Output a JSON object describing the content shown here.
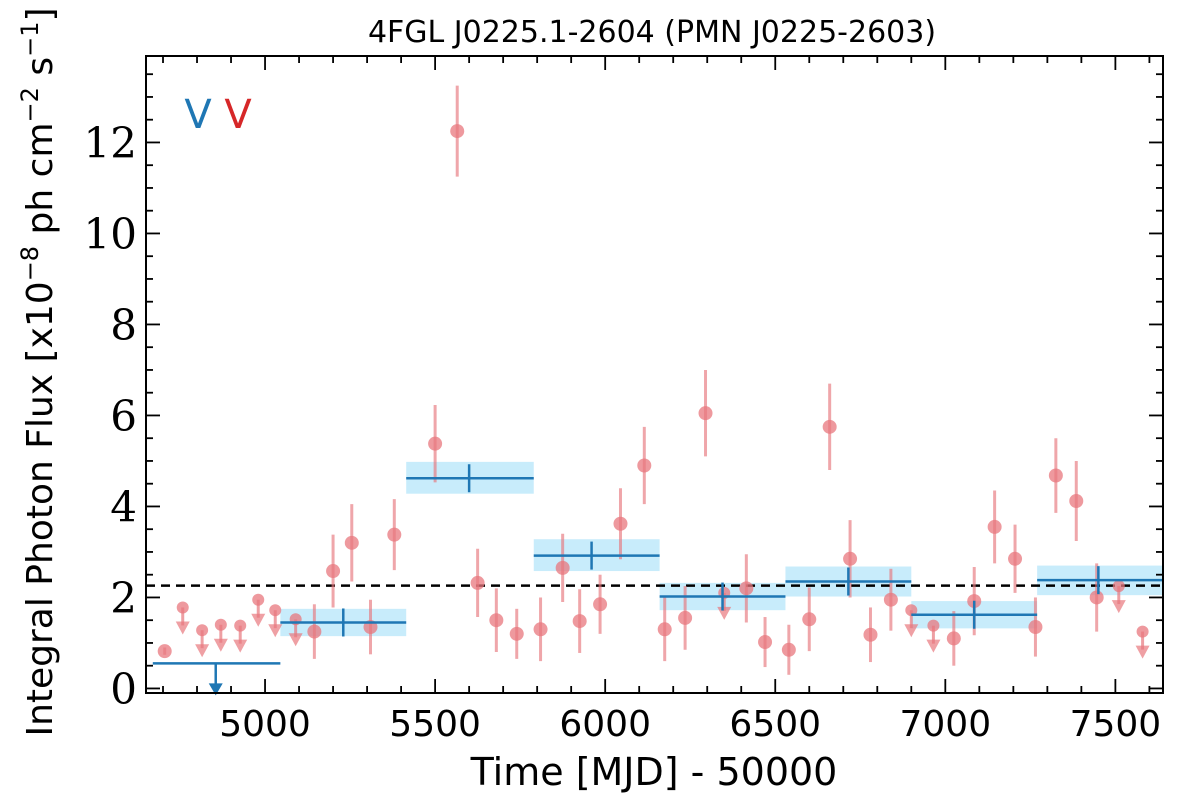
{
  "chart_data": {
    "type": "scatter",
    "title": "4FGL J0225.1-2604 (PMN J0225-2603)",
    "xlabel": "Time [MJD] - 50000",
    "ylabel_main": "Integral Photon Flux [x10",
    "ylabel_exp1": "−8",
    "ylabel_mid": " ph cm",
    "ylabel_exp2": "−2",
    "ylabel_mid2": " s",
    "ylabel_exp3": "−1",
    "ylabel_end": "]",
    "xlim": [
      4650,
      7640
    ],
    "ylim": [
      -0.1,
      13.9
    ],
    "xticks": [
      5000,
      5500,
      6000,
      6500,
      7000,
      7500
    ],
    "yticks": [
      0,
      2,
      4,
      6,
      8,
      10,
      12
    ],
    "ytick_labels": [
      "0",
      "2",
      "4",
      "6",
      "8",
      "10",
      "12"
    ],
    "mean_flux": 2.26,
    "legend_markers": [
      "V",
      "V"
    ],
    "colors": {
      "blue": "#1f77b4",
      "red": "#d62728",
      "red_points": "#e8777d",
      "band": "#c8ecfb",
      "dashed": "#000000"
    },
    "series": [
      {
        "points": [
          {
            "x": 4705,
            "y": 0.82,
            "err": 0.08
          },
          {
            "x": 4758,
            "y": 1.78,
            "err": 0.12,
            "ul": true
          },
          {
            "x": 4815,
            "y": 1.28,
            "err": 0.12,
            "ul": true
          },
          {
            "x": 4870,
            "y": 1.4,
            "err": 0.12,
            "ul": true
          },
          {
            "x": 4927,
            "y": 1.38,
            "err": 0.12,
            "ul": true
          },
          {
            "x": 4980,
            "y": 1.95,
            "err": 0.12,
            "ul": true
          },
          {
            "x": 5030,
            "y": 1.72,
            "err": 0.12,
            "ul": true
          },
          {
            "x": 5090,
            "y": 1.52,
            "err": 0.12,
            "ul": true
          },
          {
            "x": 5145,
            "y": 1.25,
            "err": 0.6
          },
          {
            "x": 5200,
            "y": 2.58,
            "err": 0.8
          },
          {
            "x": 5255,
            "y": 3.2,
            "err": 0.85
          },
          {
            "x": 5310,
            "y": 1.35,
            "err": 0.6
          },
          {
            "x": 5380,
            "y": 3.38,
            "err": 0.78
          },
          {
            "x": 5500,
            "y": 5.38,
            "err": 0.85
          },
          {
            "x": 5565,
            "y": 12.25,
            "err": 1.0
          },
          {
            "x": 5625,
            "y": 2.32,
            "err": 0.75
          },
          {
            "x": 5680,
            "y": 1.5,
            "err": 0.7
          },
          {
            "x": 5740,
            "y": 1.2,
            "err": 0.55
          },
          {
            "x": 5810,
            "y": 1.3,
            "err": 0.7
          },
          {
            "x": 5875,
            "y": 2.65,
            "err": 0.75
          },
          {
            "x": 5925,
            "y": 1.48,
            "err": 0.7
          },
          {
            "x": 5985,
            "y": 1.85,
            "err": 0.65
          },
          {
            "x": 6045,
            "y": 3.62,
            "err": 0.78
          },
          {
            "x": 6115,
            "y": 4.9,
            "err": 0.85
          },
          {
            "x": 6175,
            "y": 1.3,
            "err": 0.7
          },
          {
            "x": 6235,
            "y": 1.55,
            "err": 0.7
          },
          {
            "x": 6295,
            "y": 6.05,
            "err": 0.95
          },
          {
            "x": 6350,
            "y": 2.1,
            "err": 0.12,
            "ul": true
          },
          {
            "x": 6415,
            "y": 2.2,
            "err": 0.75
          },
          {
            "x": 6470,
            "y": 1.02,
            "err": 0.55
          },
          {
            "x": 6540,
            "y": 0.85,
            "err": 0.55
          },
          {
            "x": 6600,
            "y": 1.52,
            "err": 0.7
          },
          {
            "x": 6660,
            "y": 5.75,
            "err": 0.95
          },
          {
            "x": 6720,
            "y": 2.85,
            "err": 0.85
          },
          {
            "x": 6780,
            "y": 1.18,
            "err": 0.6
          },
          {
            "x": 6840,
            "y": 1.95,
            "err": 0.68
          },
          {
            "x": 6900,
            "y": 1.72,
            "err": 0.12,
            "ul": true
          },
          {
            "x": 6965,
            "y": 1.38,
            "err": 0.12,
            "ul": true
          },
          {
            "x": 7025,
            "y": 1.1,
            "err": 0.6
          },
          {
            "x": 7085,
            "y": 1.92,
            "err": 0.75
          },
          {
            "x": 7145,
            "y": 3.55,
            "err": 0.8
          },
          {
            "x": 7205,
            "y": 2.85,
            "err": 0.75
          },
          {
            "x": 7265,
            "y": 1.35,
            "err": 0.65
          },
          {
            "x": 7325,
            "y": 4.68,
            "err": 0.82
          },
          {
            "x": 7385,
            "y": 4.12,
            "err": 0.88
          },
          {
            "x": 7445,
            "y": 2.0,
            "err": 0.75
          },
          {
            "x": 7510,
            "y": 2.25,
            "err": 0.12,
            "ul": true
          },
          {
            "x": 7580,
            "y": 1.25,
            "err": 0.12,
            "ul": true
          }
        ]
      },
      {
        "bins": [
          {
            "x0": 4670,
            "x1": 5045,
            "y": 0.55,
            "ylo": 0.55,
            "yhi": 0.55,
            "ul": true,
            "xc": 4855
          },
          {
            "x0": 5045,
            "x1": 5415,
            "y": 1.45,
            "ylo": 1.15,
            "yhi": 1.75,
            "xc": 5230
          },
          {
            "x0": 5415,
            "x1": 5790,
            "y": 4.62,
            "ylo": 4.28,
            "yhi": 4.98,
            "xc": 5600
          },
          {
            "x0": 5790,
            "x1": 6160,
            "y": 2.92,
            "ylo": 2.58,
            "yhi": 3.28,
            "xc": 5960
          },
          {
            "x0": 6160,
            "x1": 6530,
            "y": 2.02,
            "ylo": 1.72,
            "yhi": 2.32,
            "xc": 6345
          },
          {
            "x0": 6530,
            "x1": 6900,
            "y": 2.35,
            "ylo": 2.02,
            "yhi": 2.68,
            "xc": 6715
          },
          {
            "x0": 6900,
            "x1": 7270,
            "y": 1.62,
            "ylo": 1.32,
            "yhi": 1.92,
            "xc": 7085
          },
          {
            "x0": 7270,
            "x1": 7640,
            "y": 2.38,
            "ylo": 2.05,
            "yhi": 2.7,
            "xc": 7450
          }
        ]
      }
    ]
  }
}
